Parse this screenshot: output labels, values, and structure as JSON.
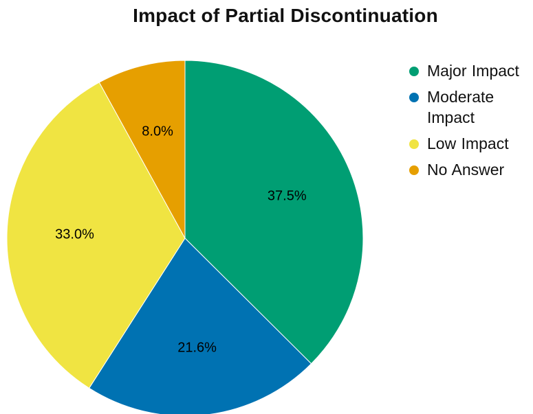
{
  "chart_data": {
    "type": "pie",
    "title": "Impact of Partial Discontinuation",
    "categories": [
      "Major Impact",
      "Moderate Impact",
      "Low Impact",
      "No Answer"
    ],
    "values": [
      37.5,
      21.6,
      33.0,
      8.0
    ],
    "labels": [
      "37.5%",
      "21.6%",
      "33.0%",
      "8.0%"
    ],
    "colors": [
      "#009E73",
      "#0072B2",
      "#F0E442",
      "#E69F00"
    ],
    "start_angle": "12 o'clock",
    "direction": "clockwise",
    "legend_position": "right"
  }
}
